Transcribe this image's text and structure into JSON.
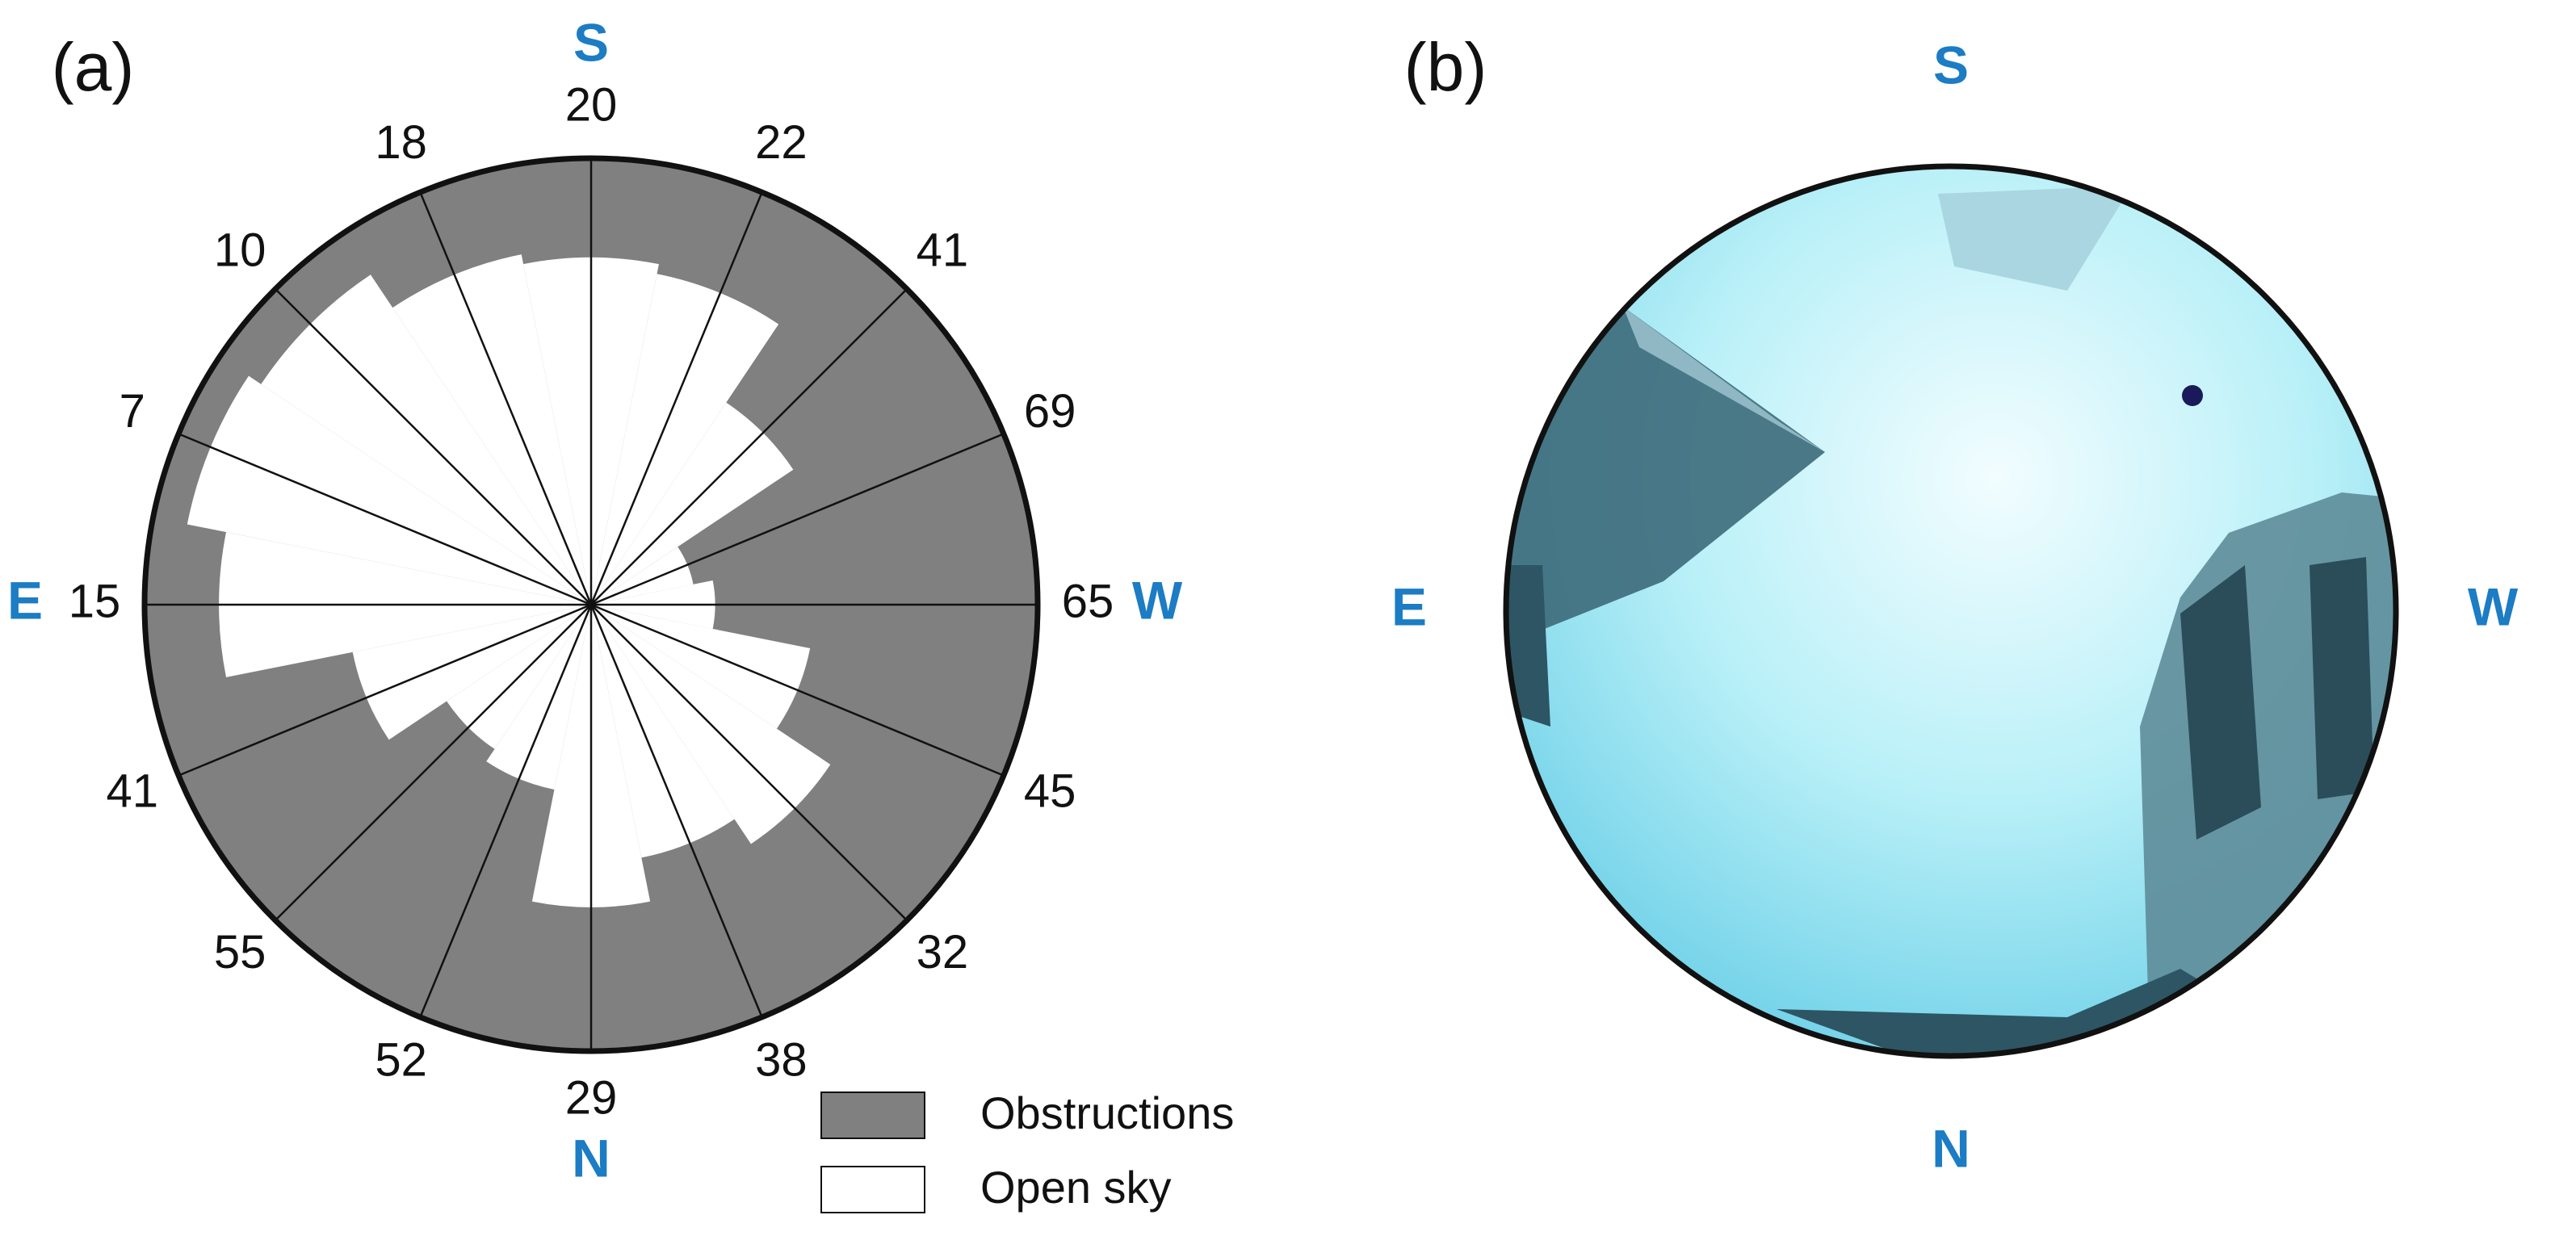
{
  "chart_data": {
    "type": "polar-obstruction",
    "panel_label": "(a)",
    "compass": [
      "S",
      "W",
      "N",
      "E"
    ],
    "values": [
      20,
      22,
      41,
      69,
      65,
      45,
      32,
      38,
      29,
      52,
      55,
      41,
      15,
      7,
      10,
      18
    ],
    "rlim": [
      90,
      0
    ],
    "series": [
      {
        "name": "Obstructions",
        "color": "#808080"
      },
      {
        "name": "Open sky",
        "color": "#ffffff"
      }
    ]
  },
  "photo": {
    "panel_label": "(b)",
    "compass": [
      "S",
      "W",
      "N",
      "E"
    ]
  }
}
